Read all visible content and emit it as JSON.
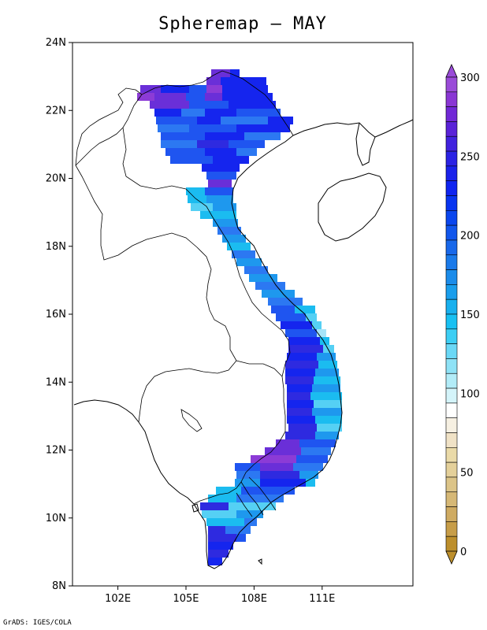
{
  "title": "Spheremap — MAY",
  "footer": "GrADS: IGES/COLA",
  "map": {
    "lon_range": [
      100,
      115
    ],
    "lat_range": [
      8,
      24
    ],
    "y_ticks": [
      {
        "lat": 24,
        "label": "24N"
      },
      {
        "lat": 22,
        "label": "22N"
      },
      {
        "lat": 20,
        "label": "20N"
      },
      {
        "lat": 18,
        "label": "18N"
      },
      {
        "lat": 16,
        "label": "16N"
      },
      {
        "lat": 14,
        "label": "14N"
      },
      {
        "lat": 12,
        "label": "12N"
      },
      {
        "lat": 10,
        "label": "10N"
      },
      {
        "lat": 8,
        "label": "8N"
      }
    ],
    "x_ticks": [
      {
        "lon": 102,
        "label": "102E"
      },
      {
        "lon": 105,
        "label": "105E"
      },
      {
        "lon": 108,
        "label": "108E"
      },
      {
        "lon": 111,
        "label": "111E"
      }
    ],
    "colors": {
      "v300": "#8c3bd6",
      "v280": "#6a2fd8",
      "v250": "#2e2ae0",
      "v230": "#1525ee",
      "v200": "#1f55f0",
      "v180": "#2c78f2",
      "v160": "#1e98ee",
      "v140": "#1bbcf0",
      "v120": "#55d0f4",
      "v100": "#a6e4f8"
    }
  },
  "colorbar": {
    "labels": [
      "300",
      "250",
      "200",
      "150",
      "100",
      "50",
      "0"
    ],
    "colors": [
      "#9a4bd8",
      "#8a36d4",
      "#7128d6",
      "#5a22d8",
      "#4122de",
      "#2b22e4",
      "#1a22ea",
      "#0f24f0",
      "#0834f0",
      "#0a46ee",
      "#1156ec",
      "#1868ea",
      "#1a7aea",
      "#1b8cea",
      "#1a9eec",
      "#18b0ee",
      "#18c0f2",
      "#3ccef4",
      "#6ad8f6",
      "#8ee2f6",
      "#b2ecf8",
      "#d4f4fa",
      "#ffffff",
      "#f6f0e2",
      "#f0e2c6",
      "#eadaa8",
      "#e4d09a",
      "#dcc488",
      "#d6b876",
      "#cfab62",
      "#c79d48",
      "#bd8f2c"
    ],
    "top_color": "#9a4bd8",
    "bottom_color": "#bd8f2c"
  }
}
